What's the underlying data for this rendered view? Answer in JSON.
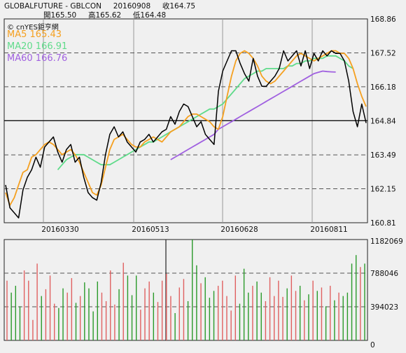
{
  "header": {
    "line1_symbol": "GLOBALFUTURE - GBLCON",
    "line1_date": "20160908",
    "line1_close_label": "收",
    "line1_close": "164.75",
    "open_label": "開",
    "open": "165.50",
    "high_label": "高",
    "high": "165.62",
    "low_label": "低",
    "low": "164.48"
  },
  "brand": "© cnYES鉅亨網",
  "legend": [
    {
      "label": "MA5",
      "value": "165.43",
      "color": "#f5a020"
    },
    {
      "label": "MA20",
      "value": "166.91",
      "color": "#5fdb8a"
    },
    {
      "label": "MA60",
      "value": "166.76",
      "color": "#a060e0"
    }
  ],
  "colors": {
    "price_line": "#000000",
    "ma5": "#f5a020",
    "ma20": "#5fdb8a",
    "ma60": "#a060e0",
    "vol_up": "#e06060",
    "vol_down": "#2a9a2a",
    "grid": "#555555",
    "panel_bg": "#f0f0f0"
  },
  "chart_data": [
    {
      "type": "line",
      "title": "",
      "y_ticks": [
        "168.86",
        "167.52",
        "166.18",
        "164.84",
        "163.49",
        "162.15",
        "160.81"
      ],
      "ylim": [
        160.81,
        168.86
      ],
      "x_tick_labels": [
        "20160330",
        "20160513",
        "20160628",
        "20160811"
      ],
      "reference_line": 164.84,
      "series": [
        {
          "name": "MA5",
          "values": [
            162.0,
            161.5,
            161.8,
            162.3,
            162.8,
            162.9,
            163.4,
            163.5,
            163.7,
            163.9,
            164.0,
            163.9,
            163.7,
            163.5,
            163.6,
            163.7,
            163.5,
            163.2,
            162.8,
            162.4,
            162.0,
            161.9,
            162.3,
            163.0,
            163.7,
            164.1,
            164.2,
            164.3,
            164.1,
            163.9,
            163.8,
            163.8,
            164.0,
            164.1,
            164.2,
            164.1,
            164.0,
            164.2,
            164.4,
            164.5,
            164.6,
            164.8,
            165.0,
            165.1,
            165.1,
            165.0,
            164.9,
            164.8,
            164.6,
            164.5,
            165.0,
            165.8,
            166.6,
            167.2,
            167.5,
            167.6,
            167.5,
            167.3,
            167.0,
            166.6,
            166.4,
            166.3,
            166.4,
            166.6,
            166.8,
            167.0,
            167.2,
            167.4,
            167.5,
            167.4,
            167.3,
            167.2,
            167.3,
            167.4,
            167.5,
            167.6,
            167.6,
            167.5,
            167.5,
            167.3,
            166.9,
            166.3,
            165.8,
            165.4
          ]
        },
        {
          "name": "MA20",
          "values": [
            null,
            null,
            null,
            null,
            null,
            null,
            null,
            null,
            null,
            null,
            null,
            null,
            162.9,
            163.1,
            163.3,
            163.4,
            163.5,
            163.5,
            163.5,
            163.4,
            163.3,
            163.2,
            163.1,
            163.1,
            163.1,
            163.2,
            163.3,
            163.4,
            163.5,
            163.6,
            163.7,
            163.8,
            163.9,
            164.0,
            164.0,
            164.1,
            164.2,
            164.3,
            164.4,
            164.5,
            164.6,
            164.7,
            164.8,
            164.9,
            165.0,
            165.1,
            165.2,
            165.3,
            165.3,
            165.4,
            165.5,
            165.7,
            165.9,
            166.1,
            166.3,
            166.5,
            166.6,
            166.7,
            166.8,
            166.8,
            166.9,
            166.9,
            166.9,
            166.9,
            166.9,
            167.0,
            167.0,
            167.1,
            167.1,
            167.2,
            167.2,
            167.3,
            167.3,
            167.3,
            167.4,
            167.4,
            167.4,
            167.3,
            167.2,
            167.0,
            166.9
          ]
        },
        {
          "name": "MA60",
          "values": [
            null,
            null,
            null,
            null,
            null,
            null,
            null,
            null,
            null,
            null,
            null,
            null,
            null,
            null,
            null,
            null,
            null,
            null,
            null,
            null,
            null,
            null,
            null,
            null,
            null,
            null,
            null,
            null,
            null,
            null,
            null,
            null,
            null,
            null,
            null,
            null,
            null,
            null,
            163.3,
            163.4,
            163.5,
            163.6,
            163.7,
            163.8,
            163.9,
            164.0,
            164.1,
            164.2,
            164.3,
            164.5,
            164.6,
            164.7,
            164.8,
            164.9,
            165.0,
            165.1,
            165.2,
            165.3,
            165.4,
            165.5,
            165.6,
            165.7,
            165.8,
            165.9,
            166.0,
            166.1,
            166.2,
            166.3,
            166.4,
            166.5,
            166.6,
            166.7,
            166.75,
            166.8,
            166.78,
            166.77,
            166.76
          ]
        },
        {
          "values": [
            162.3,
            161.4,
            161.2,
            161.0,
            162.1,
            162.6,
            162.9,
            163.4,
            163.0,
            163.8,
            164.0,
            164.2,
            163.6,
            163.2,
            163.7,
            163.9,
            163.2,
            163.4,
            162.6,
            162.0,
            161.8,
            161.7,
            162.4,
            163.5,
            164.3,
            164.6,
            164.2,
            164.4,
            164.0,
            163.8,
            163.6,
            164.0,
            164.1,
            164.3,
            164.0,
            164.2,
            164.4,
            164.5,
            165.0,
            164.7,
            165.2,
            165.5,
            165.4,
            165.0,
            164.6,
            164.8,
            164.3,
            164.1,
            163.9,
            166.0,
            166.8,
            167.2,
            167.6,
            167.6,
            167.1,
            166.7,
            166.4,
            167.3,
            166.6,
            166.2,
            166.2,
            166.4,
            166.6,
            166.9,
            167.6,
            167.2,
            167.4,
            167.6,
            167.0,
            167.6,
            166.9,
            167.5,
            167.2,
            167.6,
            167.4,
            167.6,
            167.5,
            167.5,
            167.2,
            166.4,
            165.2,
            164.6,
            165.5,
            164.75
          ]
        }
      ]
    },
    {
      "type": "bar",
      "title": "",
      "y_ticks": [
        "1182069",
        "788046",
        "394023",
        "0"
      ],
      "ylim": [
        0,
        1182069
      ],
      "series": [
        {
          "values": [
            700000,
            560000,
            640000,
            400000,
            820000,
            700000,
            240000,
            900000,
            520000,
            600000,
            760000,
            430000,
            380000,
            610000,
            560000,
            730000,
            440000,
            520000,
            680000,
            610000,
            340000,
            690000,
            560000,
            460000,
            820000,
            420000,
            600000,
            910000,
            760000,
            530000,
            760000,
            360000,
            610000,
            690000,
            560000,
            450000,
            700000,
            780000,
            520000,
            320000,
            620000,
            720000,
            460000,
            1182000,
            880000,
            670000,
            740000,
            500000,
            580000,
            640000,
            700000,
            520000,
            350000,
            760000,
            430000,
            840000,
            560000,
            640000,
            690000,
            560000,
            460000,
            740000,
            520000,
            700000,
            510000,
            610000,
            760000,
            580000,
            640000,
            470000,
            540000,
            700000,
            580000,
            620000,
            400000,
            640000,
            470000,
            560000,
            520000,
            560000,
            900000,
            1000000,
            860000,
            900000
          ]
        }
      ]
    }
  ]
}
